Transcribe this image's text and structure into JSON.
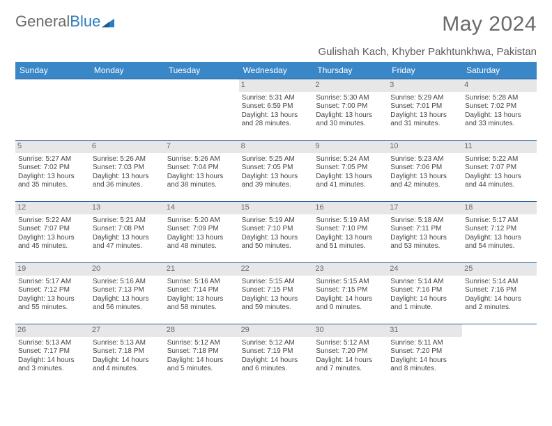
{
  "brand": {
    "part1": "General",
    "part2": "Blue"
  },
  "title": "May 2024",
  "location": "Gulishah Kach, Khyber Pakhtunkhwa, Pakistan",
  "colors": {
    "header_bg": "#3a87c8",
    "header_text": "#ffffff",
    "row_divider": "#2860a0",
    "daynum_bg": "#e7e7e7",
    "daynum_text": "#6a6a6a",
    "body_text": "#444444",
    "title_text": "#6a6a6a",
    "brand_gray": "#6a6a6a",
    "brand_blue": "#2b7cc0"
  },
  "typography": {
    "title_fontsize": 30,
    "location_fontsize": 15,
    "dayheader_fontsize": 12,
    "daynum_fontsize": 11,
    "detail_fontsize": 10,
    "logo_fontsize": 22
  },
  "layout": {
    "columns": 7,
    "rows": 5,
    "cell_min_height": 88
  },
  "day_headers": [
    "Sunday",
    "Monday",
    "Tuesday",
    "Wednesday",
    "Thursday",
    "Friday",
    "Saturday"
  ],
  "weeks": [
    [
      {
        "n": "",
        "sr": "",
        "ss": "",
        "dl": ""
      },
      {
        "n": "",
        "sr": "",
        "ss": "",
        "dl": ""
      },
      {
        "n": "",
        "sr": "",
        "ss": "",
        "dl": ""
      },
      {
        "n": "1",
        "sr": "Sunrise: 5:31 AM",
        "ss": "Sunset: 6:59 PM",
        "dl": "Daylight: 13 hours and 28 minutes."
      },
      {
        "n": "2",
        "sr": "Sunrise: 5:30 AM",
        "ss": "Sunset: 7:00 PM",
        "dl": "Daylight: 13 hours and 30 minutes."
      },
      {
        "n": "3",
        "sr": "Sunrise: 5:29 AM",
        "ss": "Sunset: 7:01 PM",
        "dl": "Daylight: 13 hours and 31 minutes."
      },
      {
        "n": "4",
        "sr": "Sunrise: 5:28 AM",
        "ss": "Sunset: 7:02 PM",
        "dl": "Daylight: 13 hours and 33 minutes."
      }
    ],
    [
      {
        "n": "5",
        "sr": "Sunrise: 5:27 AM",
        "ss": "Sunset: 7:02 PM",
        "dl": "Daylight: 13 hours and 35 minutes."
      },
      {
        "n": "6",
        "sr": "Sunrise: 5:26 AM",
        "ss": "Sunset: 7:03 PM",
        "dl": "Daylight: 13 hours and 36 minutes."
      },
      {
        "n": "7",
        "sr": "Sunrise: 5:26 AM",
        "ss": "Sunset: 7:04 PM",
        "dl": "Daylight: 13 hours and 38 minutes."
      },
      {
        "n": "8",
        "sr": "Sunrise: 5:25 AM",
        "ss": "Sunset: 7:05 PM",
        "dl": "Daylight: 13 hours and 39 minutes."
      },
      {
        "n": "9",
        "sr": "Sunrise: 5:24 AM",
        "ss": "Sunset: 7:05 PM",
        "dl": "Daylight: 13 hours and 41 minutes."
      },
      {
        "n": "10",
        "sr": "Sunrise: 5:23 AM",
        "ss": "Sunset: 7:06 PM",
        "dl": "Daylight: 13 hours and 42 minutes."
      },
      {
        "n": "11",
        "sr": "Sunrise: 5:22 AM",
        "ss": "Sunset: 7:07 PM",
        "dl": "Daylight: 13 hours and 44 minutes."
      }
    ],
    [
      {
        "n": "12",
        "sr": "Sunrise: 5:22 AM",
        "ss": "Sunset: 7:07 PM",
        "dl": "Daylight: 13 hours and 45 minutes."
      },
      {
        "n": "13",
        "sr": "Sunrise: 5:21 AM",
        "ss": "Sunset: 7:08 PM",
        "dl": "Daylight: 13 hours and 47 minutes."
      },
      {
        "n": "14",
        "sr": "Sunrise: 5:20 AM",
        "ss": "Sunset: 7:09 PM",
        "dl": "Daylight: 13 hours and 48 minutes."
      },
      {
        "n": "15",
        "sr": "Sunrise: 5:19 AM",
        "ss": "Sunset: 7:10 PM",
        "dl": "Daylight: 13 hours and 50 minutes."
      },
      {
        "n": "16",
        "sr": "Sunrise: 5:19 AM",
        "ss": "Sunset: 7:10 PM",
        "dl": "Daylight: 13 hours and 51 minutes."
      },
      {
        "n": "17",
        "sr": "Sunrise: 5:18 AM",
        "ss": "Sunset: 7:11 PM",
        "dl": "Daylight: 13 hours and 53 minutes."
      },
      {
        "n": "18",
        "sr": "Sunrise: 5:17 AM",
        "ss": "Sunset: 7:12 PM",
        "dl": "Daylight: 13 hours and 54 minutes."
      }
    ],
    [
      {
        "n": "19",
        "sr": "Sunrise: 5:17 AM",
        "ss": "Sunset: 7:12 PM",
        "dl": "Daylight: 13 hours and 55 minutes."
      },
      {
        "n": "20",
        "sr": "Sunrise: 5:16 AM",
        "ss": "Sunset: 7:13 PM",
        "dl": "Daylight: 13 hours and 56 minutes."
      },
      {
        "n": "21",
        "sr": "Sunrise: 5:16 AM",
        "ss": "Sunset: 7:14 PM",
        "dl": "Daylight: 13 hours and 58 minutes."
      },
      {
        "n": "22",
        "sr": "Sunrise: 5:15 AM",
        "ss": "Sunset: 7:15 PM",
        "dl": "Daylight: 13 hours and 59 minutes."
      },
      {
        "n": "23",
        "sr": "Sunrise: 5:15 AM",
        "ss": "Sunset: 7:15 PM",
        "dl": "Daylight: 14 hours and 0 minutes."
      },
      {
        "n": "24",
        "sr": "Sunrise: 5:14 AM",
        "ss": "Sunset: 7:16 PM",
        "dl": "Daylight: 14 hours and 1 minute."
      },
      {
        "n": "25",
        "sr": "Sunrise: 5:14 AM",
        "ss": "Sunset: 7:16 PM",
        "dl": "Daylight: 14 hours and 2 minutes."
      }
    ],
    [
      {
        "n": "26",
        "sr": "Sunrise: 5:13 AM",
        "ss": "Sunset: 7:17 PM",
        "dl": "Daylight: 14 hours and 3 minutes."
      },
      {
        "n": "27",
        "sr": "Sunrise: 5:13 AM",
        "ss": "Sunset: 7:18 PM",
        "dl": "Daylight: 14 hours and 4 minutes."
      },
      {
        "n": "28",
        "sr": "Sunrise: 5:12 AM",
        "ss": "Sunset: 7:18 PM",
        "dl": "Daylight: 14 hours and 5 minutes."
      },
      {
        "n": "29",
        "sr": "Sunrise: 5:12 AM",
        "ss": "Sunset: 7:19 PM",
        "dl": "Daylight: 14 hours and 6 minutes."
      },
      {
        "n": "30",
        "sr": "Sunrise: 5:12 AM",
        "ss": "Sunset: 7:20 PM",
        "dl": "Daylight: 14 hours and 7 minutes."
      },
      {
        "n": "31",
        "sr": "Sunrise: 5:11 AM",
        "ss": "Sunset: 7:20 PM",
        "dl": "Daylight: 14 hours and 8 minutes."
      },
      {
        "n": "",
        "sr": "",
        "ss": "",
        "dl": ""
      }
    ]
  ]
}
